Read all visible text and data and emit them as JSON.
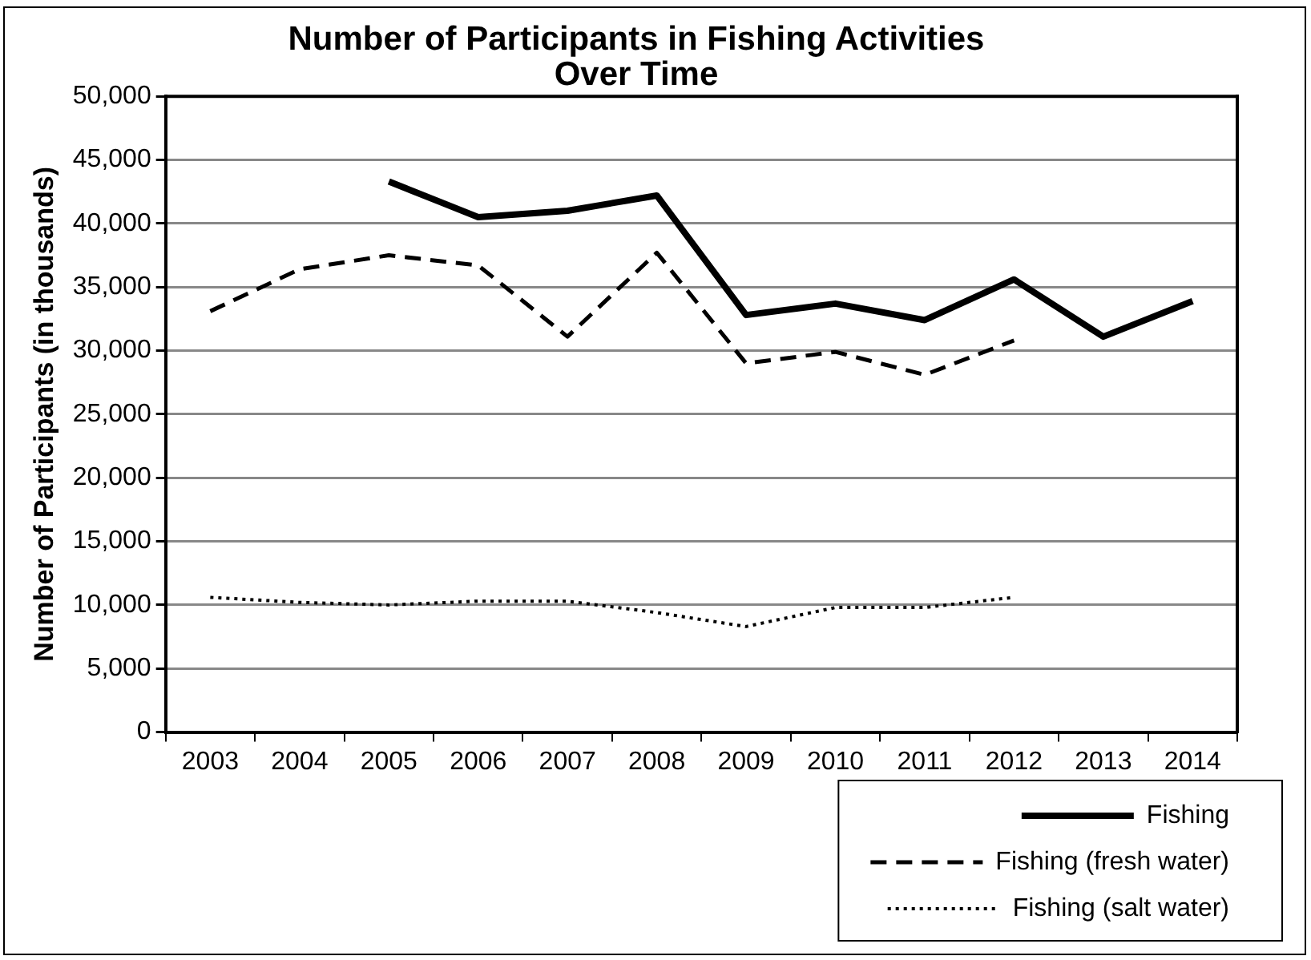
{
  "chart_data": {
    "type": "line",
    "title": "Number of Participants in Fishing Activities\nOver Time",
    "ylabel": "Number of Participants (in thousands)",
    "categories": [
      "2003",
      "2004",
      "2005",
      "2006",
      "2007",
      "2008",
      "2009",
      "2010",
      "2011",
      "2012",
      "2013",
      "2014"
    ],
    "series": [
      {
        "name": "Fishing",
        "color": "#000000",
        "line_style": "solid",
        "values": [
          null,
          null,
          43300,
          40500,
          41000,
          42200,
          32800,
          33700,
          32400,
          35600,
          31100,
          33900
        ]
      },
      {
        "name": "Fishing (fresh water)",
        "color": "#000000",
        "line_style": "dashed",
        "values": [
          33100,
          36400,
          37500,
          36700,
          31100,
          37700,
          29000,
          29900,
          28100,
          30800,
          null,
          null
        ]
      },
      {
        "name": "Fishing (salt water)",
        "color": "#000000",
        "line_style": "dotted",
        "values": [
          10600,
          10200,
          10000,
          10300,
          10300,
          9400,
          8300,
          9800,
          9800,
          10600,
          null,
          null
        ]
      }
    ],
    "ylim": [
      0,
      50000
    ],
    "yticks": [
      0,
      {
        "value": 5000,
        "label": "5,000"
      },
      {
        "value": 10000,
        "label": "10,000"
      },
      {
        "value": 15000,
        "label": "15,000"
      },
      {
        "value": 20000,
        "label": "20,000"
      },
      {
        "value": 25000,
        "label": "25,000"
      },
      {
        "value": 30000,
        "label": "30,000"
      },
      {
        "value": 35000,
        "label": "35,000"
      },
      {
        "value": 40000,
        "label": "40,000"
      },
      {
        "value": 45000,
        "label": "45,000"
      },
      {
        "value": 50000,
        "label": "50,000"
      }
    ],
    "grid": "y",
    "legend": "bottom right",
    "marker": "none"
  }
}
